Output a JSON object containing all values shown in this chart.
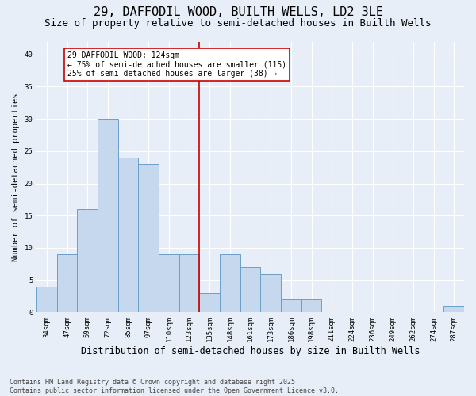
{
  "title": "29, DAFFODIL WOOD, BUILTH WELLS, LD2 3LE",
  "subtitle": "Size of property relative to semi-detached houses in Builth Wells",
  "xlabel": "Distribution of semi-detached houses by size in Builth Wells",
  "ylabel": "Number of semi-detached properties",
  "categories": [
    "34sqm",
    "47sqm",
    "59sqm",
    "72sqm",
    "85sqm",
    "97sqm",
    "110sqm",
    "123sqm",
    "135sqm",
    "148sqm",
    "161sqm",
    "173sqm",
    "186sqm",
    "198sqm",
    "211sqm",
    "224sqm",
    "236sqm",
    "249sqm",
    "262sqm",
    "274sqm",
    "287sqm"
  ],
  "values": [
    4,
    9,
    16,
    30,
    24,
    23,
    9,
    9,
    3,
    9,
    7,
    6,
    2,
    2,
    0,
    0,
    0,
    0,
    0,
    0,
    1
  ],
  "bar_color": "#c5d8ee",
  "bar_edge_color": "#6b9fc8",
  "background_color": "#e8eef7",
  "grid_color": "#ffffff",
  "vline_x": 7.5,
  "vline_color": "#cc0000",
  "annotation_text": "29 DAFFODIL WOOD: 124sqm\n← 75% of semi-detached houses are smaller (115)\n25% of semi-detached houses are larger (38) →",
  "annotation_box_facecolor": "#ffffff",
  "annotation_box_edgecolor": "#cc0000",
  "ylim": [
    0,
    42
  ],
  "yticks": [
    0,
    5,
    10,
    15,
    20,
    25,
    30,
    35,
    40
  ],
  "footnote": "Contains HM Land Registry data © Crown copyright and database right 2025.\nContains public sector information licensed under the Open Government Licence v3.0.",
  "title_fontsize": 11,
  "subtitle_fontsize": 9,
  "xlabel_fontsize": 8.5,
  "ylabel_fontsize": 7.5,
  "tick_fontsize": 6.5,
  "annotation_fontsize": 7,
  "footnote_fontsize": 6
}
